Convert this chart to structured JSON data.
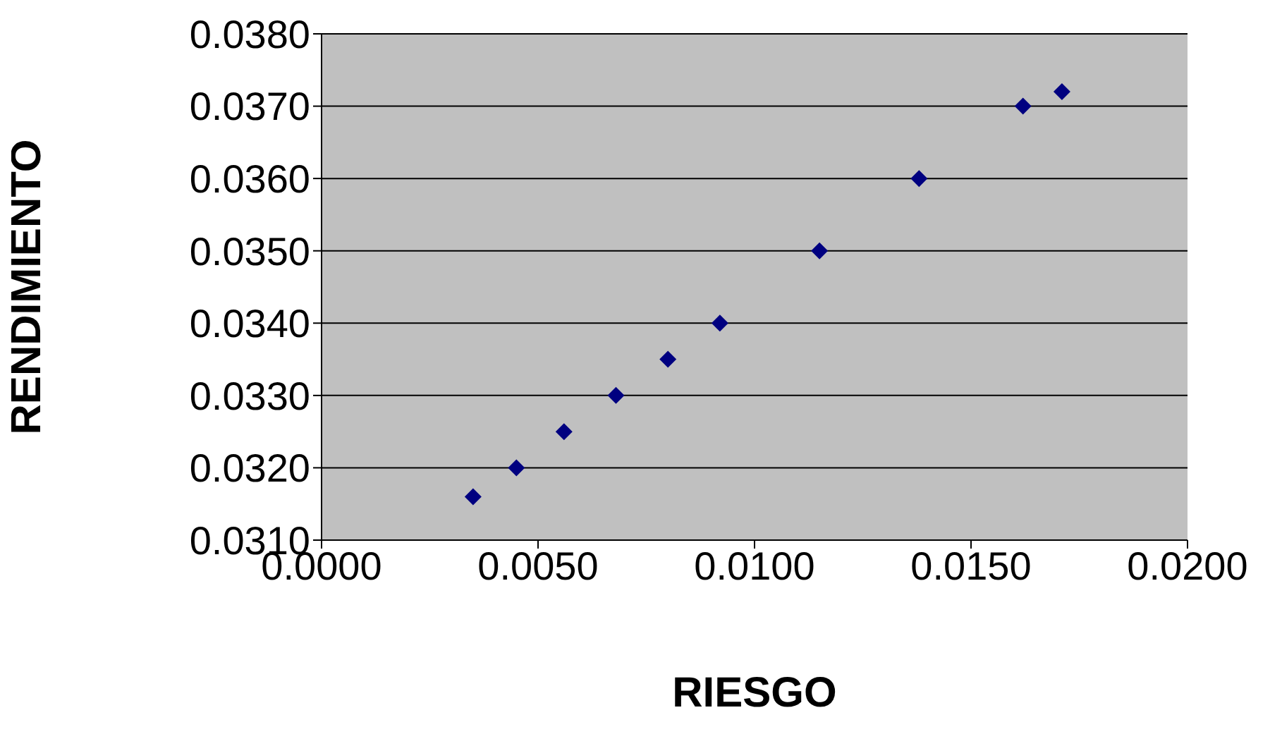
{
  "chart_data": {
    "type": "scatter",
    "xlabel": "RIESGO",
    "ylabel": "RENDIMIENTO",
    "x": [
      0.0035,
      0.0045,
      0.0056,
      0.0068,
      0.008,
      0.0092,
      0.0115,
      0.0138,
      0.0162,
      0.0171
    ],
    "series": [
      {
        "color": "#000080",
        "values": [
          0.0316,
          0.032,
          0.0325,
          0.033,
          0.0335,
          0.034,
          0.035,
          0.036,
          0.037,
          0.0372
        ]
      }
    ],
    "xlim": [
      0,
      0.02
    ],
    "xticks": [
      {
        "value": 0,
        "label": "0.0000"
      },
      {
        "value": 0.005,
        "label": "0.0050"
      },
      {
        "value": 0.01,
        "label": "0.0100"
      },
      {
        "value": 0.015,
        "label": "0.0150"
      },
      {
        "value": 0.02,
        "label": "0.0200"
      }
    ],
    "ylim": [
      0.031,
      0.038
    ],
    "yticks": [
      {
        "value": 0.031,
        "label": "0.0310"
      },
      {
        "value": 0.032,
        "label": "0.0320"
      },
      {
        "value": 0.033,
        "label": "0.0330"
      },
      {
        "value": 0.034,
        "label": "0.0340"
      },
      {
        "value": 0.035,
        "label": "0.0350"
      },
      {
        "value": 0.036,
        "label": "0.0360"
      },
      {
        "value": 0.037,
        "label": "0.0370"
      },
      {
        "value": 0.038,
        "label": "0.0380"
      }
    ],
    "grid": "y",
    "marker": "diamond",
    "legend": false
  }
}
